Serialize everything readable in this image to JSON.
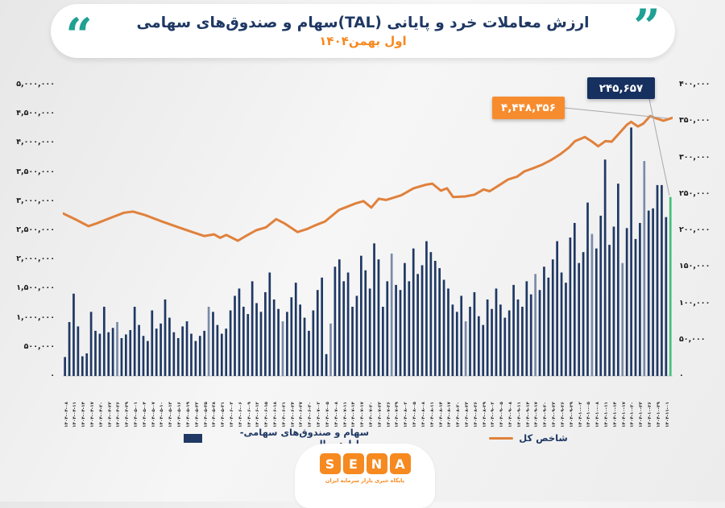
{
  "header": {
    "title": "ارزش معاملات خرد و پایانی (TAL)سهام و صندوق‌های سهامی",
    "subtitle": "اول بهمن۱۴۰۴"
  },
  "annotations": {
    "bar_value_label": "۲۴۵,۶۵۷",
    "index_value_label": "۴,۴۴۸,۳۵۶"
  },
  "legend": {
    "bars_label": "سهام و صندوق‌های سهامی- میلیارد ریال",
    "index_label": "شاخص کل"
  },
  "logo": {
    "letters": [
      "S",
      "E",
      "N",
      "A"
    ],
    "caption": "پایگاه خبری بازار سرمایه ایران"
  },
  "colors": {
    "navy": "#1F3864",
    "navy_muted": "#7A8BA8",
    "orange_line": "#E0813C",
    "orange_accent": "#F6891F",
    "teal": "#1FA193",
    "green_highlight": "#42C07A",
    "leader_gray": "#A8A8A8"
  },
  "chart_data": {
    "type": "bar+line combo",
    "title": "ارزش معاملات خرد و پایانی (TAL)سهام و صندوق‌های سهامی - اول بهمن۱۴۰۴",
    "left_axis": {
      "min": 0,
      "max": 5000000,
      "step": 500000,
      "ticks": [
        "۵,۰۰۰,۰۰۰",
        "۴,۵۰۰,۰۰۰",
        "۴,۰۰۰,۰۰۰",
        "۳,۵۰۰,۰۰۰",
        "۳,۰۰۰,۰۰۰",
        "۲,۵۰۰,۰۰۰",
        "۲,۰۰۰,۰۰۰",
        "۱,۵۰۰,۰۰۰",
        "۱,۰۰۰,۰۰۰",
        "۵۰۰,۰۰۰",
        "۰"
      ]
    },
    "right_axis": {
      "min": 0,
      "max": 400000,
      "step": 50000,
      "ticks": [
        "۴۰۰,۰۰۰",
        "۳۵۰,۰۰۰",
        "۳۰۰,۰۰۰",
        "۲۵۰,۰۰۰",
        "۲۰۰,۰۰۰",
        "۱۵۰,۰۰۰",
        "۱۰۰,۰۰۰",
        "۵۰,۰۰۰",
        "۰"
      ]
    },
    "x_labels": [
      "۱۴۰۴-۰۴-۰۸",
      "۱۴۰۴-۰۴-۱۱",
      "۱۴۰۴-۰۴-۱۴",
      "۱۴۰۴-۰۴-۱۷",
      "۱۴۰۴-۰۴-۲۰",
      "۱۴۰۴-۰۴-۲۳",
      "۱۴۰۴-۰۴-۲۶",
      "۱۴۰۴-۰۴-۲۹",
      "۱۴۰۴-۰۵-۰۱",
      "۱۴۰۴-۰۵-۰۴",
      "۱۴۰۴-۰۵-۰۷",
      "۱۴۰۴-۰۵-۱۰",
      "۱۴۰۴-۰۵-۱۳",
      "۱۴۰۴-۰۵-۱۶",
      "۱۴۰۴-۰۵-۱۹",
      "۱۴۰۴-۰۵-۲۲",
      "۱۴۰۴-۰۵-۲۵",
      "۱۴۰۴-۰۵-۲۸",
      "۱۴۰۴-۰۵-۳۱",
      "۱۴۰۴-۰۶-۰۳",
      "۱۴۰۴-۰۶-۰۶",
      "۱۴۰۴-۰۶-۰۹",
      "۱۴۰۴-۰۶-۱۲",
      "۱۴۰۴-۰۶-۱۵",
      "۱۴۰۴-۰۶-۱۸",
      "۱۴۰۴-۰۶-۲۱",
      "۱۴۰۴-۰۶-۲۴",
      "۱۴۰۴-۰۶-۲۷",
      "۱۴۰۴-۰۶-۳۰",
      "۱۴۰۴-۰۷-۰۲",
      "۱۴۰۴-۰۷-۰۵",
      "۱۴۰۴-۰۷-۰۸",
      "۱۴۰۴-۰۷-۱۱",
      "۱۴۰۴-۰۷-۱۴",
      "۱۴۰۴-۰۷-۱۷",
      "۱۴۰۴-۰۷-۲۰",
      "۱۴۰۴-۰۷-۲۳",
      "۱۴۰۴-۰۷-۲۶",
      "۱۴۰۴-۰۷-۲۹",
      "۱۴۰۴-۰۸-۰۲",
      "۱۴۰۴-۰۸-۰۵",
      "۱۴۰۴-۰۸-۰۸",
      "۱۴۰۴-۰۸-۱۱",
      "۱۴۰۴-۰۸-۱۴",
      "۱۴۰۴-۰۸-۱۷",
      "۱۴۰۴-۰۸-۲۰",
      "۱۴۰۴-۰۸-۲۳",
      "۱۴۰۴-۰۸-۲۶",
      "۱۴۰۴-۰۸-۲۹",
      "۱۴۰۴-۰۹-۰۲",
      "۱۴۰۴-۰۹-۰۵",
      "۱۴۰۴-۰۹-۰۸",
      "۱۴۰۴-۰۹-۱۱",
      "۱۴۰۴-۰۹-۱۴",
      "۱۴۰۴-۰۹-۱۷",
      "۱۴۰۴-۰۹-۲۰",
      "۱۴۰۴-۰۹-۲۳",
      "۱۴۰۴-۰۹-۲۶",
      "۱۴۰۴-۰۹-۲۹",
      "۱۴۰۴-۱۰-۰۲",
      "۱۴۰۴-۱۰-۰۵",
      "۱۴۰۴-۱۰-۰۸",
      "۱۴۰۴-۱۰-۱۱",
      "۱۴۰۴-۱۰-۱۴",
      "۱۴۰۴-۱۰-۱۷",
      "۱۴۰۴-۱۰-۲۰",
      "۱۴۰۴-۱۰-۲۳",
      "۱۴۰۴-۱۰-۲۶",
      "۱۴۰۴-۱۰-۲۹",
      "۱۴۰۴-۱۱-۰۱"
    ],
    "bars": {
      "name": "سهام و صندوق‌های سهامی- میلیارد ریال",
      "axis": "right",
      "unit": "میلیارد ریال",
      "last_value": 245657,
      "muted_indexes": [
        12,
        33,
        50,
        61,
        75,
        92,
        108,
        121,
        128,
        133
      ],
      "values": [
        26000,
        74000,
        113000,
        68000,
        27000,
        31000,
        88000,
        62000,
        58000,
        95000,
        60000,
        66000,
        74000,
        52000,
        57000,
        63000,
        95000,
        70000,
        55000,
        48000,
        90000,
        65000,
        72000,
        105000,
        80000,
        60000,
        52000,
        68000,
        75000,
        58000,
        48000,
        55000,
        62000,
        95000,
        88000,
        70000,
        58000,
        65000,
        90000,
        110000,
        120000,
        95000,
        85000,
        130000,
        100000,
        88000,
        115000,
        142000,
        105000,
        92000,
        75000,
        88000,
        108000,
        128000,
        98000,
        80000,
        62000,
        90000,
        118000,
        135000,
        30000,
        72000,
        150000,
        160000,
        130000,
        142000,
        95000,
        110000,
        165000,
        145000,
        120000,
        182000,
        160000,
        95000,
        130000,
        168000,
        125000,
        118000,
        155000,
        130000,
        175000,
        140000,
        152000,
        185000,
        170000,
        158000,
        148000,
        132000,
        120000,
        98000,
        88000,
        110000,
        75000,
        95000,
        115000,
        82000,
        70000,
        105000,
        92000,
        120000,
        98000,
        80000,
        90000,
        125000,
        105000,
        95000,
        130000,
        112000,
        140000,
        118000,
        150000,
        135000,
        160000,
        185000,
        142000,
        128000,
        190000,
        210000,
        155000,
        170000,
        238000,
        195000,
        175000,
        220000,
        297000,
        180000,
        205000,
        264000,
        155000,
        203000,
        341000,
        188000,
        210000,
        295000,
        227000,
        230000,
        262000,
        262000,
        218000,
        245657
      ]
    },
    "line": {
      "name": "شاخص کل",
      "axis": "left",
      "last_value": 4448356,
      "points": [
        [
          0,
          2790000
        ],
        [
          0.022,
          2680000
        ],
        [
          0.042,
          2570000
        ],
        [
          0.056,
          2620000
        ],
        [
          0.08,
          2720000
        ],
        [
          0.1,
          2800000
        ],
        [
          0.115,
          2820000
        ],
        [
          0.135,
          2760000
        ],
        [
          0.16,
          2660000
        ],
        [
          0.19,
          2550000
        ],
        [
          0.215,
          2460000
        ],
        [
          0.232,
          2400000
        ],
        [
          0.248,
          2430000
        ],
        [
          0.258,
          2370000
        ],
        [
          0.268,
          2420000
        ],
        [
          0.287,
          2320000
        ],
        [
          0.3,
          2400000
        ],
        [
          0.317,
          2500000
        ],
        [
          0.333,
          2550000
        ],
        [
          0.35,
          2690000
        ],
        [
          0.363,
          2620000
        ],
        [
          0.385,
          2470000
        ],
        [
          0.4,
          2520000
        ],
        [
          0.413,
          2580000
        ],
        [
          0.43,
          2650000
        ],
        [
          0.453,
          2850000
        ],
        [
          0.48,
          2960000
        ],
        [
          0.493,
          3000000
        ],
        [
          0.506,
          2890000
        ],
        [
          0.518,
          3040000
        ],
        [
          0.53,
          3020000
        ],
        [
          0.555,
          3100000
        ],
        [
          0.575,
          3220000
        ],
        [
          0.595,
          3280000
        ],
        [
          0.606,
          3300000
        ],
        [
          0.62,
          3180000
        ],
        [
          0.63,
          3220000
        ],
        [
          0.64,
          3070000
        ],
        [
          0.66,
          3080000
        ],
        [
          0.675,
          3110000
        ],
        [
          0.69,
          3200000
        ],
        [
          0.7,
          3170000
        ],
        [
          0.715,
          3270000
        ],
        [
          0.73,
          3370000
        ],
        [
          0.745,
          3420000
        ],
        [
          0.757,
          3510000
        ],
        [
          0.77,
          3560000
        ],
        [
          0.785,
          3620000
        ],
        [
          0.8,
          3700000
        ],
        [
          0.815,
          3800000
        ],
        [
          0.83,
          3920000
        ],
        [
          0.84,
          4030000
        ],
        [
          0.856,
          4100000
        ],
        [
          0.868,
          4020000
        ],
        [
          0.878,
          3940000
        ],
        [
          0.89,
          4030000
        ],
        [
          0.9,
          4020000
        ],
        [
          0.913,
          4170000
        ],
        [
          0.925,
          4310000
        ],
        [
          0.932,
          4360000
        ],
        [
          0.943,
          4280000
        ],
        [
          0.952,
          4330000
        ],
        [
          0.963,
          4460000
        ],
        [
          0.973,
          4420000
        ],
        [
          0.985,
          4380000
        ],
        [
          1,
          4430000
        ]
      ]
    }
  }
}
